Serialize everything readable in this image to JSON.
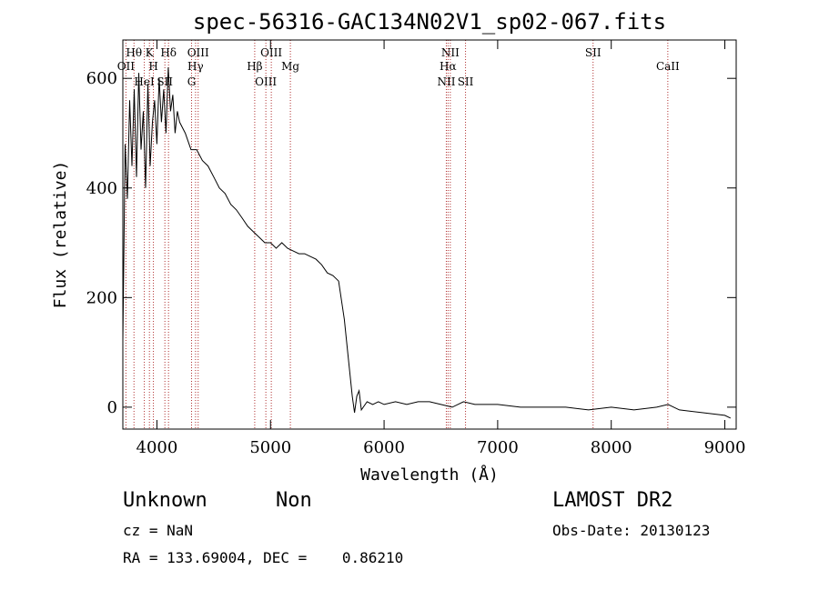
{
  "chart_data": {
    "type": "line",
    "title": "spec-56316-GAC134N02V1_sp02-067.fits",
    "xlabel": "Wavelength (Å)",
    "ylabel": "Flux (relative)",
    "xlim": [
      3700,
      9100
    ],
    "ylim": [
      -40,
      670
    ],
    "xticks": [
      4000,
      5000,
      6000,
      7000,
      8000,
      9000
    ],
    "yticks": [
      0,
      200,
      400,
      600
    ],
    "grid": false,
    "legend": "none",
    "series": [
      {
        "x": [
          3700,
          3720,
          3740,
          3760,
          3780,
          3800,
          3820,
          3840,
          3860,
          3880,
          3900,
          3920,
          3940,
          3960,
          3980,
          4000,
          4020,
          4040,
          4060,
          4080,
          4100,
          4120,
          4140,
          4160,
          4180,
          4200,
          4250,
          4300,
          4350,
          4400,
          4450,
          4500,
          4550,
          4600,
          4650,
          4700,
          4750,
          4800,
          4850,
          4900,
          4950,
          5000,
          5050,
          5100,
          5150,
          5200,
          5250,
          5300,
          5350,
          5400,
          5450,
          5500,
          5550,
          5600,
          5650,
          5680,
          5700,
          5720,
          5740,
          5760,
          5780,
          5800,
          5850,
          5900,
          5950,
          6000,
          6100,
          6200,
          6300,
          6400,
          6500,
          6600,
          6700,
          6800,
          6900,
          7000,
          7200,
          7400,
          7600,
          7800,
          8000,
          8200,
          8400,
          8500,
          8600,
          8800,
          9000,
          9050
        ],
        "y": [
          120,
          480,
          380,
          560,
          440,
          580,
          420,
          610,
          470,
          540,
          400,
          590,
          440,
          520,
          560,
          480,
          600,
          520,
          580,
          500,
          620,
          540,
          570,
          500,
          540,
          520,
          500,
          470,
          470,
          450,
          440,
          420,
          400,
          390,
          370,
          360,
          345,
          330,
          320,
          310,
          300,
          300,
          290,
          300,
          290,
          285,
          280,
          280,
          275,
          270,
          260,
          245,
          240,
          230,
          160,
          100,
          60,
          20,
          -10,
          20,
          30,
          -5,
          10,
          5,
          10,
          5,
          10,
          5,
          10,
          10,
          5,
          0,
          10,
          5,
          5,
          5,
          0,
          0,
          0,
          -5,
          0,
          -5,
          0,
          5,
          -5,
          -10,
          -15,
          -20
        ]
      }
    ],
    "line_markers": [
      {
        "label": "Hθ",
        "x": 3798
      },
      {
        "label": "OII",
        "x": 3727
      },
      {
        "label": "HeI",
        "x": 3889
      },
      {
        "label": "K",
        "x": 3934
      },
      {
        "label": "H",
        "x": 3969
      },
      {
        "label": "SII",
        "x": 4070
      },
      {
        "label": "Hδ",
        "x": 4102
      },
      {
        "label": "Hγ",
        "x": 4340
      },
      {
        "label": "G",
        "x": 4305
      },
      {
        "label": "OIII",
        "x": 4363
      },
      {
        "label": "Hβ",
        "x": 4861
      },
      {
        "label": "OIII",
        "x": 4959
      },
      {
        "label": "OIII",
        "x": 5007
      },
      {
        "label": "Mg",
        "x": 5175
      },
      {
        "label": "NII",
        "x": 6548
      },
      {
        "label": "NII",
        "x": 6583
      },
      {
        "label": "Hα",
        "x": 6563
      },
      {
        "label": "SII",
        "x": 6717
      },
      {
        "label": "SII",
        "x": 7840
      },
      {
        "label": "CaII",
        "x": 8498
      }
    ]
  },
  "info": {
    "class": "Unknown",
    "subclass": "Non",
    "survey": "LAMOST DR2",
    "cz": "cz = NaN",
    "obs_date": "Obs-Date: 20130123",
    "radec": "RA = 133.69004, DEC =    0.86210"
  }
}
